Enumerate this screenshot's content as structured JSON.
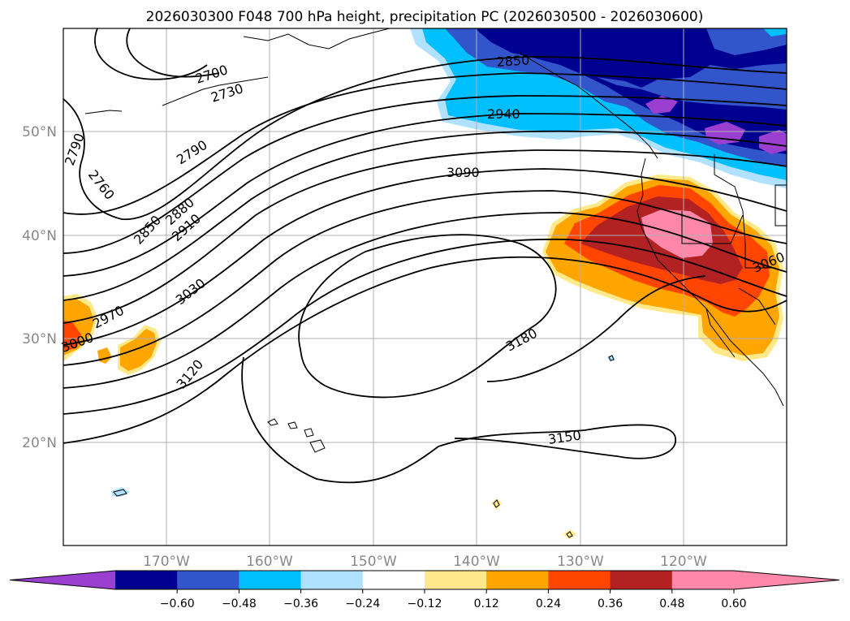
{
  "title": "2026030300 F048 700 hPa height, precipitation PC (2026030500 - 2026030600)",
  "lat_labels": [
    "50°N",
    "40°N",
    "30°N",
    "20°N"
  ],
  "lon_labels": [
    "170°W",
    "160°W",
    "150°W",
    "140°W",
    "130°W",
    "120°W"
  ],
  "contour_labels": [
    "2700",
    "2730",
    "2760",
    "2790",
    "2790",
    "2850",
    "2880",
    "2910",
    "2850",
    "2940",
    "2970",
    "3000",
    "3030",
    "3060",
    "3090",
    "3120",
    "3150",
    "3180"
  ],
  "colorbar": {
    "ticks": [
      "−0.60",
      "−0.48",
      "−0.36",
      "−0.24",
      "−0.12",
      "0.12",
      "0.24",
      "0.36",
      "0.48",
      "0.60"
    ],
    "colors": [
      "#9a3fd0",
      "#000090",
      "#3355cc",
      "#00bfff",
      "#b0e2ff",
      "#ffffff",
      "#ffe98a",
      "#ffa500",
      "#ff4500",
      "#b22222",
      "#ff88aa",
      "#ff88aa"
    ]
  },
  "colors": {
    "neg_strong": "#000090",
    "neg_mid": "#3355cc",
    "neg_light": "#00bfff",
    "neg_pale": "#b0e2ff",
    "neg_extreme": "#9a3fd0",
    "pos_pale": "#ffe98a",
    "pos_mid": "#ffa500",
    "pos_strong": "#ff4500",
    "pos_dark": "#b22222",
    "pos_extreme": "#ff88aa"
  }
}
